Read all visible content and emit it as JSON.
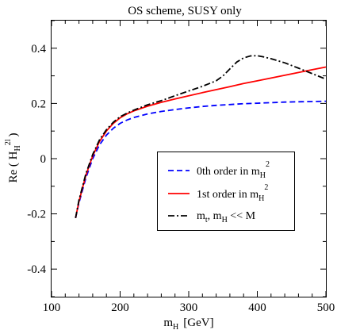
{
  "chart_data": {
    "type": "line",
    "title": "OS scheme,  SUSY only",
    "xlabel": {
      "main": "m",
      "sub": "H",
      "unit": "[GeV]"
    },
    "ylabel": {
      "main": "Re ( H",
      "sub": "H",
      "sup": "2l",
      "close": ")"
    },
    "xlim": [
      100,
      500
    ],
    "ylim": [
      -0.5,
      0.5
    ],
    "xticks": [
      100,
      200,
      300,
      400,
      500
    ],
    "yticks": [
      -0.4,
      -0.2,
      0,
      0.2,
      0.4
    ],
    "ytick_labels": [
      "-0.4",
      "-0.2",
      "0",
      "0.2",
      "0.4"
    ],
    "grid": false,
    "legend_position": "center-right",
    "series": [
      {
        "name": "0th order in m_H^2",
        "legend": {
          "main": "0th order in m",
          "sub": "H",
          "sup": "2"
        },
        "color": "#0000ff",
        "style": "dashed",
        "x": [
          135,
          140,
          150,
          160,
          170,
          180,
          190,
          200,
          210,
          220,
          240,
          260,
          280,
          300,
          320,
          340,
          360,
          380,
          400,
          420,
          440,
          460,
          480,
          500
        ],
        "y": [
          -0.215,
          -0.16,
          -0.07,
          0.0,
          0.05,
          0.085,
          0.11,
          0.128,
          0.14,
          0.149,
          0.162,
          0.171,
          0.178,
          0.184,
          0.189,
          0.193,
          0.196,
          0.199,
          0.201,
          0.203,
          0.205,
          0.206,
          0.207,
          0.208
        ]
      },
      {
        "name": "1st order in m_H^2",
        "legend": {
          "main": "1st order in m",
          "sub": "H",
          "sup": "2"
        },
        "color": "#ff0000",
        "style": "solid",
        "x": [
          135,
          140,
          150,
          160,
          170,
          180,
          190,
          200,
          210,
          220,
          240,
          260,
          280,
          300,
          320,
          340,
          360,
          380,
          400,
          420,
          440,
          460,
          480,
          500
        ],
        "y": [
          -0.215,
          -0.155,
          -0.06,
          0.01,
          0.062,
          0.1,
          0.128,
          0.148,
          0.162,
          0.173,
          0.19,
          0.204,
          0.216,
          0.228,
          0.239,
          0.25,
          0.261,
          0.272,
          0.282,
          0.292,
          0.302,
          0.312,
          0.322,
          0.332
        ]
      },
      {
        "name": "m_t, m_H << M",
        "legend": {
          "main1": "m",
          "sub1": "t",
          "mid": ", m",
          "sub2": "H",
          "tail": " << M"
        },
        "color": "#000000",
        "style": "dashdot",
        "x": [
          135,
          140,
          150,
          160,
          170,
          180,
          190,
          200,
          210,
          220,
          240,
          260,
          280,
          300,
          320,
          340,
          350,
          360,
          370,
          380,
          390,
          400,
          410,
          420,
          440,
          460,
          480,
          500
        ],
        "y": [
          -0.215,
          -0.15,
          -0.055,
          0.015,
          0.068,
          0.105,
          0.132,
          0.152,
          0.165,
          0.176,
          0.195,
          0.21,
          0.228,
          0.245,
          0.262,
          0.282,
          0.3,
          0.325,
          0.35,
          0.365,
          0.372,
          0.373,
          0.368,
          0.362,
          0.347,
          0.328,
          0.308,
          0.288
        ]
      }
    ]
  }
}
